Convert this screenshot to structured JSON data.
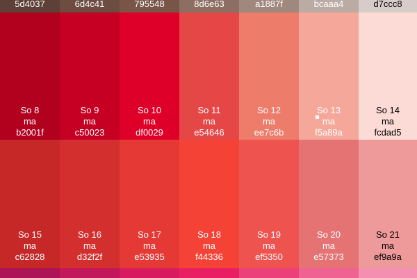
{
  "top_row": [
    {
      "hex": "5d4037",
      "color": "#5d4037",
      "text_color": "light"
    },
    {
      "hex": "6d4c41",
      "color": "#6d4c41",
      "text_color": "light"
    },
    {
      "hex": "795548",
      "color": "#795548",
      "text_color": "light"
    },
    {
      "hex": "8d6e63",
      "color": "#8d6e63",
      "text_color": "light"
    },
    {
      "hex": "a1887f",
      "color": "#a1887f",
      "text_color": "light"
    },
    {
      "hex": "bcaaa4",
      "color": "#bcaaa4",
      "text_color": "light"
    },
    {
      "hex": "d7ccc8",
      "color": "#d7ccc8",
      "text_color": "dark"
    }
  ],
  "row_so_8_14": [
    {
      "label": "So 8",
      "ma": "ma",
      "hex": "b2001f",
      "color": "#b2001f",
      "text_color": "light"
    },
    {
      "label": "So 9",
      "ma": "ma",
      "hex": "c50023",
      "color": "#c50023",
      "text_color": "light"
    },
    {
      "label": "So 10",
      "ma": "ma",
      "hex": "df0029",
      "color": "#df0029",
      "text_color": "light"
    },
    {
      "label": "So 11",
      "ma": "ma",
      "hex": "e54646",
      "color": "#e54646",
      "text_color": "light"
    },
    {
      "label": "So 12",
      "ma": "ma",
      "hex": "ee7c6b",
      "color": "#ee7c6b",
      "text_color": "light"
    },
    {
      "label": "So 13",
      "ma": "ma",
      "hex": "f5a89a",
      "color": "#f5a89a",
      "text_color": "light"
    },
    {
      "label": "So 14",
      "ma": "ma",
      "hex": "fcdad5",
      "color": "#fcdad5",
      "text_color": "dark"
    }
  ],
  "row_so_15_21": [
    {
      "label": "So 15",
      "ma": "ma",
      "hex": "c62828",
      "color": "#c62828",
      "text_color": "light"
    },
    {
      "label": "So 16",
      "ma": "ma",
      "hex": "d32f2f",
      "color": "#d32f2f",
      "text_color": "light"
    },
    {
      "label": "So 17",
      "ma": "ma",
      "hex": "e53935",
      "color": "#e53935",
      "text_color": "light"
    },
    {
      "label": "So 18",
      "ma": "ma",
      "hex": "f44336",
      "color": "#f44336",
      "text_color": "light"
    },
    {
      "label": "So 19",
      "ma": "ma",
      "hex": "ef5350",
      "color": "#ef5350",
      "text_color": "light"
    },
    {
      "label": "So 20",
      "ma": "ma",
      "hex": "e57373",
      "color": "#e57373",
      "text_color": "light"
    },
    {
      "label": "So 21",
      "ma": "ma",
      "hex": "ef9a9a",
      "color": "#ef9a9a",
      "text_color": "dark"
    }
  ],
  "tail_row_colors": [
    "#ad1457",
    "#c2185b",
    "#d81b60",
    "#e91e63",
    "#ec407a",
    "#f06292",
    "#f48fb1"
  ]
}
